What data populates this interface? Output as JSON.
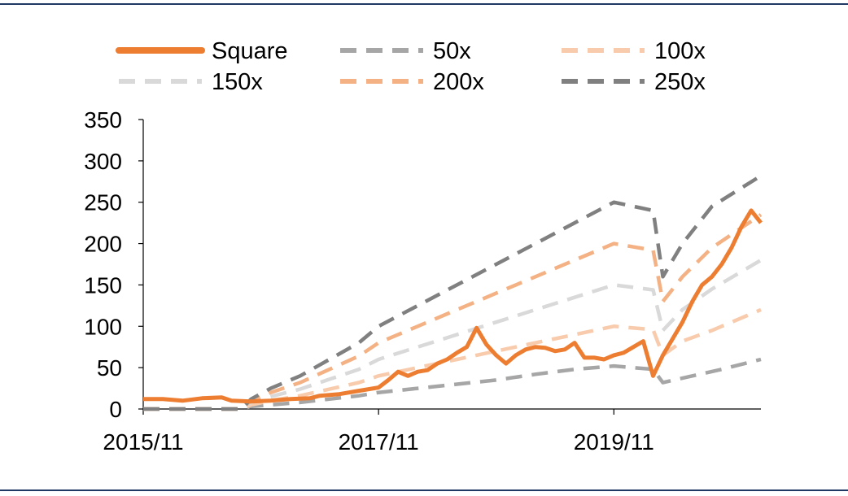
{
  "chart_data": {
    "type": "line",
    "title": "",
    "xlabel": "",
    "ylabel": "",
    "ylim": [
      0,
      350
    ],
    "yticks": [
      0,
      50,
      100,
      150,
      200,
      250,
      300,
      350
    ],
    "xlim": [
      "2015-11",
      "2021-02"
    ],
    "xticks": [
      "2015/11",
      "2017/11",
      "2019/11"
    ],
    "legend_position": "top",
    "grid": false,
    "series": [
      {
        "name": "Square",
        "color": "#ed7d31",
        "style": "solid",
        "points": [
          [
            "2015-11",
            12
          ],
          [
            "2016-01",
            12
          ],
          [
            "2016-03",
            10
          ],
          [
            "2016-05",
            13
          ],
          [
            "2016-07",
            14
          ],
          [
            "2016-08",
            10
          ],
          [
            "2016-10",
            9
          ],
          [
            "2016-12",
            10
          ],
          [
            "2017-02",
            12
          ],
          [
            "2017-04",
            13
          ],
          [
            "2017-05",
            16
          ],
          [
            "2017-07",
            18
          ],
          [
            "2017-09",
            22
          ],
          [
            "2017-11",
            26
          ],
          [
            "2017-12",
            35
          ],
          [
            "2018-01",
            45
          ],
          [
            "2018-02",
            40
          ],
          [
            "2018-03",
            45
          ],
          [
            "2018-04",
            47
          ],
          [
            "2018-05",
            55
          ],
          [
            "2018-06",
            60
          ],
          [
            "2018-07",
            68
          ],
          [
            "2018-08",
            75
          ],
          [
            "2018-09",
            98
          ],
          [
            "2018-10",
            78
          ],
          [
            "2018-11",
            65
          ],
          [
            "2018-12",
            55
          ],
          [
            "2019-01",
            65
          ],
          [
            "2019-02",
            72
          ],
          [
            "2019-03",
            75
          ],
          [
            "2019-04",
            74
          ],
          [
            "2019-05",
            70
          ],
          [
            "2019-06",
            72
          ],
          [
            "2019-07",
            80
          ],
          [
            "2019-08",
            62
          ],
          [
            "2019-09",
            62
          ],
          [
            "2019-10",
            60
          ],
          [
            "2019-11",
            65
          ],
          [
            "2019-12",
            68
          ],
          [
            "2020-01",
            75
          ],
          [
            "2020-02",
            82
          ],
          [
            "2020-03",
            40
          ],
          [
            "2020-04",
            65
          ],
          [
            "2020-05",
            85
          ],
          [
            "2020-06",
            105
          ],
          [
            "2020-07",
            130
          ],
          [
            "2020-08",
            150
          ],
          [
            "2020-09",
            160
          ],
          [
            "2020-10",
            175
          ],
          [
            "2020-11",
            195
          ],
          [
            "2020-12",
            220
          ],
          [
            "2021-01",
            240
          ],
          [
            "2021-02",
            225
          ]
        ]
      },
      {
        "name": "50x",
        "color": "#a6a6a6",
        "style": "dashed",
        "points": [
          [
            "2015-11",
            0
          ],
          [
            "2016-06",
            0
          ],
          [
            "2016-09",
            0
          ],
          [
            "2016-10",
            3
          ],
          [
            "2016-12",
            5
          ],
          [
            "2017-03",
            8
          ],
          [
            "2017-06",
            12
          ],
          [
            "2017-09",
            16
          ],
          [
            "2017-11",
            20
          ],
          [
            "2018-03",
            25
          ],
          [
            "2018-07",
            30
          ],
          [
            "2018-11",
            35
          ],
          [
            "2019-03",
            42
          ],
          [
            "2019-07",
            48
          ],
          [
            "2019-11",
            52
          ],
          [
            "2020-03",
            48
          ],
          [
            "2020-04",
            32
          ],
          [
            "2020-07",
            40
          ],
          [
            "2020-10",
            48
          ],
          [
            "2021-02",
            60
          ]
        ]
      },
      {
        "name": "100x",
        "color": "#f8cbad",
        "style": "dashed",
        "points": [
          [
            "2015-11",
            0
          ],
          [
            "2016-09",
            0
          ],
          [
            "2016-10",
            5
          ],
          [
            "2016-12",
            10
          ],
          [
            "2017-03",
            16
          ],
          [
            "2017-06",
            24
          ],
          [
            "2017-09",
            32
          ],
          [
            "2017-11",
            40
          ],
          [
            "2018-03",
            50
          ],
          [
            "2018-07",
            60
          ],
          [
            "2018-11",
            70
          ],
          [
            "2019-03",
            80
          ],
          [
            "2019-07",
            90
          ],
          [
            "2019-11",
            100
          ],
          [
            "2020-03",
            96
          ],
          [
            "2020-04",
            65
          ],
          [
            "2020-06",
            82
          ],
          [
            "2020-09",
            95
          ],
          [
            "2021-02",
            120
          ]
        ]
      },
      {
        "name": "150x",
        "color": "#d9d9d9",
        "style": "dashed",
        "points": [
          [
            "2015-11",
            0
          ],
          [
            "2016-09",
            0
          ],
          [
            "2016-10",
            8
          ],
          [
            "2016-12",
            15
          ],
          [
            "2017-03",
            24
          ],
          [
            "2017-06",
            36
          ],
          [
            "2017-09",
            48
          ],
          [
            "2017-11",
            60
          ],
          [
            "2018-03",
            75
          ],
          [
            "2018-07",
            90
          ],
          [
            "2018-11",
            105
          ],
          [
            "2019-03",
            120
          ],
          [
            "2019-07",
            135
          ],
          [
            "2019-11",
            150
          ],
          [
            "2020-03",
            144
          ],
          [
            "2020-04",
            95
          ],
          [
            "2020-06",
            120
          ],
          [
            "2020-09",
            145
          ],
          [
            "2021-02",
            180
          ]
        ]
      },
      {
        "name": "200x",
        "color": "#f4b183",
        "style": "dashed",
        "points": [
          [
            "2015-11",
            0
          ],
          [
            "2016-09",
            0
          ],
          [
            "2016-10",
            10
          ],
          [
            "2016-12",
            20
          ],
          [
            "2017-03",
            32
          ],
          [
            "2017-06",
            48
          ],
          [
            "2017-09",
            64
          ],
          [
            "2017-11",
            80
          ],
          [
            "2018-03",
            100
          ],
          [
            "2018-07",
            120
          ],
          [
            "2018-11",
            140
          ],
          [
            "2019-03",
            160
          ],
          [
            "2019-07",
            180
          ],
          [
            "2019-11",
            200
          ],
          [
            "2020-03",
            192
          ],
          [
            "2020-04",
            130
          ],
          [
            "2020-06",
            160
          ],
          [
            "2020-09",
            195
          ],
          [
            "2021-02",
            235
          ]
        ]
      },
      {
        "name": "250x",
        "color": "#808080",
        "style": "dashed",
        "points": [
          [
            "2015-11",
            0
          ],
          [
            "2016-09",
            0
          ],
          [
            "2016-10",
            12
          ],
          [
            "2016-12",
            25
          ],
          [
            "2017-03",
            40
          ],
          [
            "2017-06",
            60
          ],
          [
            "2017-09",
            80
          ],
          [
            "2017-11",
            100
          ],
          [
            "2018-03",
            125
          ],
          [
            "2018-07",
            150
          ],
          [
            "2018-11",
            175
          ],
          [
            "2019-03",
            200
          ],
          [
            "2019-07",
            225
          ],
          [
            "2019-11",
            250
          ],
          [
            "2020-03",
            240
          ],
          [
            "2020-04",
            160
          ],
          [
            "2020-06",
            200
          ],
          [
            "2020-09",
            245
          ],
          [
            "2021-02",
            282
          ]
        ]
      }
    ]
  }
}
